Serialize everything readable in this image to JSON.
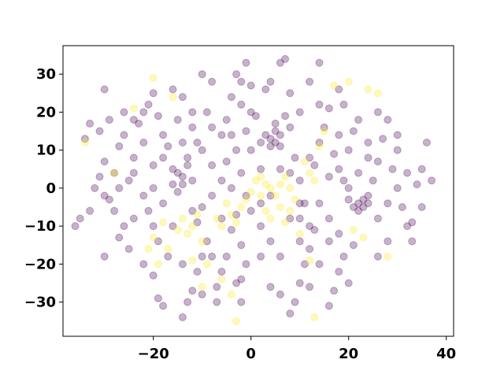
{
  "chart_data": {
    "type": "scatter",
    "title": "",
    "xlabel": "",
    "ylabel": "",
    "xlim": [
      -38.5,
      41.5
    ],
    "ylim": [
      -39,
      37.5
    ],
    "xticks": [
      -20,
      0,
      20,
      40
    ],
    "yticks": [
      -30,
      -20,
      -10,
      0,
      10,
      20,
      30
    ],
    "grid": false,
    "legend": "none",
    "marker_alpha": 0.3,
    "colors": {
      "class_0": "#440154",
      "class_1": "#fde725"
    },
    "series": [
      {
        "class": 0,
        "points": [
          [
            -36,
            -10
          ],
          [
            -35,
            -8
          ],
          [
            -33,
            -6
          ],
          [
            -34,
            13
          ],
          [
            -33,
            17
          ],
          [
            -31,
            15
          ],
          [
            -30,
            26
          ],
          [
            -29,
            18
          ],
          [
            -32,
            0
          ],
          [
            -31,
            3
          ],
          [
            -30,
            7
          ],
          [
            -29,
            -3
          ],
          [
            -28,
            -6
          ],
          [
            -27,
            11
          ],
          [
            -26,
            14
          ],
          [
            -25,
            2
          ],
          [
            -27,
            -13
          ],
          [
            -25,
            -16
          ],
          [
            -24,
            8
          ],
          [
            -23,
            17
          ],
          [
            -22,
            20
          ],
          [
            -21,
            22
          ],
          [
            -20,
            25
          ],
          [
            -19,
            19
          ],
          [
            -18,
            14
          ],
          [
            -22,
            -2
          ],
          [
            -21,
            -6
          ],
          [
            -20,
            -10
          ],
          [
            -19,
            -14
          ],
          [
            -22,
            -20
          ],
          [
            -20,
            -23
          ],
          [
            -19,
            -29
          ],
          [
            -18,
            -31
          ],
          [
            -17,
            11
          ],
          [
            -16,
            5
          ],
          [
            -15,
            4
          ],
          [
            -14,
            3
          ],
          [
            -13,
            6
          ],
          [
            -16,
            1
          ],
          [
            -14,
            1
          ],
          [
            -15,
            -1
          ],
          [
            -12,
            2
          ],
          [
            -13,
            8
          ],
          [
            -15,
            18
          ],
          [
            -14,
            24
          ],
          [
            -12,
            16
          ],
          [
            -11,
            12
          ],
          [
            -10,
            30
          ],
          [
            -9,
            20
          ],
          [
            -8,
            6
          ],
          [
            -8,
            -2
          ],
          [
            -10,
            -5
          ],
          [
            -11,
            -9
          ],
          [
            -9,
            -14
          ],
          [
            -10,
            -18
          ],
          [
            -11,
            -22
          ],
          [
            -12,
            -27
          ],
          [
            -13,
            -30
          ],
          [
            -14,
            -34
          ],
          [
            -7,
            -26
          ],
          [
            -6,
            -22
          ],
          [
            -5,
            -18
          ],
          [
            -6,
            14
          ],
          [
            -5,
            18
          ],
          [
            -4,
            24
          ],
          [
            -3,
            30
          ],
          [
            -2,
            22
          ],
          [
            -1,
            15
          ],
          [
            -3,
            10
          ],
          [
            -2,
            4
          ],
          [
            -1,
            -2
          ],
          [
            -3,
            -7
          ],
          [
            -4,
            -11
          ],
          [
            -2,
            -15
          ],
          [
            -1,
            -20
          ],
          [
            -3,
            -25
          ],
          [
            -2,
            -30
          ],
          [
            -1,
            33
          ],
          [
            0,
            27
          ],
          [
            1,
            19
          ],
          [
            2,
            12
          ],
          [
            3,
            14
          ],
          [
            4,
            13
          ],
          [
            5,
            15
          ],
          [
            6,
            14
          ],
          [
            4,
            11
          ],
          [
            5,
            12
          ],
          [
            6,
            11
          ],
          [
            5,
            17
          ],
          [
            7,
            19
          ],
          [
            3,
            26
          ],
          [
            6,
            33
          ],
          [
            7,
            34
          ],
          [
            8,
            25
          ],
          [
            9,
            8
          ],
          [
            10,
            2
          ],
          [
            11,
            -4
          ],
          [
            12,
            -10
          ],
          [
            13,
            -11
          ],
          [
            12,
            -16
          ],
          [
            11,
            -20
          ],
          [
            10,
            -25
          ],
          [
            9,
            -30
          ],
          [
            8,
            -33
          ],
          [
            13,
            6
          ],
          [
            14,
            12
          ],
          [
            15,
            16
          ],
          [
            16,
            21
          ],
          [
            14,
            33
          ],
          [
            17,
            9
          ],
          [
            18,
            5
          ],
          [
            19,
            2
          ],
          [
            20,
            -3
          ],
          [
            21,
            -5
          ],
          [
            22,
            -4
          ],
          [
            23,
            -3
          ],
          [
            24,
            -4
          ],
          [
            23,
            -5
          ],
          [
            24,
            -2
          ],
          [
            22,
            -6
          ],
          [
            25,
            2
          ],
          [
            26,
            7
          ],
          [
            27,
            13
          ],
          [
            28,
            18
          ],
          [
            29,
            5
          ],
          [
            30,
            0
          ],
          [
            31,
            -5
          ],
          [
            32,
            -10
          ],
          [
            33,
            -14
          ],
          [
            34,
            1
          ],
          [
            35,
            5
          ],
          [
            36,
            12
          ],
          [
            37,
            2
          ],
          [
            35,
            -5
          ],
          [
            33,
            -9
          ],
          [
            21,
            -15
          ],
          [
            19,
            -18
          ],
          [
            18,
            -22
          ],
          [
            17,
            -27
          ],
          [
            16,
            -31
          ],
          [
            20,
            10
          ],
          [
            21,
            15
          ],
          [
            22,
            18
          ],
          [
            19,
            22
          ],
          [
            18,
            26
          ],
          [
            -30,
            -18
          ],
          [
            -27,
            0
          ],
          [
            -24,
            -8
          ],
          [
            -17,
            -18
          ],
          [
            -7,
            -30
          ],
          [
            0,
            -6
          ],
          [
            2,
            -10
          ],
          [
            4,
            -14
          ],
          [
            6,
            -18
          ],
          [
            8,
            -8
          ],
          [
            10,
            -14
          ],
          [
            14,
            -4
          ],
          [
            16,
            -8
          ],
          [
            18,
            -12
          ],
          [
            26,
            -18
          ],
          [
            28,
            -14
          ],
          [
            30,
            10
          ],
          [
            14,
            22
          ],
          [
            10,
            20
          ],
          [
            2,
            5
          ],
          [
            -5,
            7
          ],
          [
            -8,
            28
          ],
          [
            -18,
            8
          ],
          [
            -26,
            20
          ],
          [
            -20,
            0
          ],
          [
            -6,
            -8
          ],
          [
            -4,
            0
          ],
          [
            4,
            -2
          ],
          [
            8,
            4
          ],
          [
            12,
            8
          ],
          [
            24,
            8
          ],
          [
            -14,
            12
          ],
          [
            -10,
            10
          ],
          [
            -22,
            12
          ],
          [
            -28,
            4
          ],
          [
            0,
            10
          ],
          [
            6,
            5
          ],
          [
            -2,
            28
          ],
          [
            12,
            28
          ],
          [
            4,
            -26
          ],
          [
            -10,
            -28
          ],
          [
            20,
            -25
          ],
          [
            -16,
            -10
          ],
          [
            -24,
            18
          ],
          [
            30,
            14
          ],
          [
            26,
            -8
          ],
          [
            16,
            3
          ],
          [
            -12,
            -6
          ],
          [
            2,
            -18
          ],
          [
            10,
            -4
          ],
          [
            -6,
            2
          ],
          [
            22,
            4
          ],
          [
            -8,
            -18
          ],
          [
            14,
            -20
          ],
          [
            -20,
            6
          ],
          [
            8,
            16
          ],
          [
            -2,
            -24
          ],
          [
            18,
            14
          ],
          [
            -30,
            -2
          ],
          [
            32,
            4
          ],
          [
            6,
            -28
          ],
          [
            -14,
            -20
          ],
          [
            26,
            20
          ],
          [
            0,
            20
          ],
          [
            -16,
            26
          ],
          [
            12,
            -26
          ],
          [
            -26,
            -10
          ],
          [
            28,
            -4
          ],
          [
            -4,
            14
          ],
          [
            10,
            -8
          ],
          [
            -12,
            20
          ],
          [
            4,
            28
          ],
          [
            -18,
            -4
          ],
          [
            20,
            0
          ],
          [
            -8,
            16
          ],
          [
            16,
            -14
          ],
          [
            -24,
            4
          ],
          [
            2,
            -4
          ],
          [
            24,
            12
          ]
        ]
      },
      {
        "class": 1,
        "points": [
          [
            -20,
            29
          ],
          [
            -16,
            24
          ],
          [
            -24,
            21
          ],
          [
            -34,
            12
          ],
          [
            -28,
            4
          ],
          [
            -20,
            -13
          ],
          [
            -21,
            -16
          ],
          [
            -19,
            -20
          ],
          [
            -17,
            -16
          ],
          [
            -18,
            -9
          ],
          [
            -14,
            -8
          ],
          [
            -15,
            -11
          ],
          [
            -13,
            -12
          ],
          [
            -12,
            -10
          ],
          [
            -11,
            -7
          ],
          [
            -10,
            -14
          ],
          [
            -12,
            -19
          ],
          [
            -9,
            -20
          ],
          [
            -10,
            -26
          ],
          [
            -6,
            -24
          ],
          [
            -4,
            -28
          ],
          [
            -3,
            -35
          ],
          [
            -5,
            -4
          ],
          [
            -4,
            -7
          ],
          [
            -3,
            -9
          ],
          [
            -2,
            -5
          ],
          [
            -1,
            -3
          ],
          [
            0,
            -1
          ],
          [
            1,
            2
          ],
          [
            2,
            3
          ],
          [
            3,
            1
          ],
          [
            4,
            0
          ],
          [
            5,
            -2
          ],
          [
            6,
            1
          ],
          [
            7,
            3
          ],
          [
            8,
            0
          ],
          [
            2,
            -2
          ],
          [
            3,
            -6
          ],
          [
            4,
            -8
          ],
          [
            6,
            -5
          ],
          [
            7,
            -9
          ],
          [
            8,
            -6
          ],
          [
            9,
            -3
          ],
          [
            10,
            -12
          ],
          [
            11,
            7
          ],
          [
            12,
            4
          ],
          [
            13,
            2
          ],
          [
            12,
            -19
          ],
          [
            14,
            11
          ],
          [
            15,
            15
          ],
          [
            17,
            27
          ],
          [
            20,
            28
          ],
          [
            24,
            26
          ],
          [
            26,
            25
          ],
          [
            21,
            -11
          ],
          [
            23,
            -13
          ],
          [
            28,
            -18
          ],
          [
            13,
            -34
          ],
          [
            -7,
            -8
          ],
          [
            -6,
            -10
          ]
        ]
      }
    ]
  }
}
